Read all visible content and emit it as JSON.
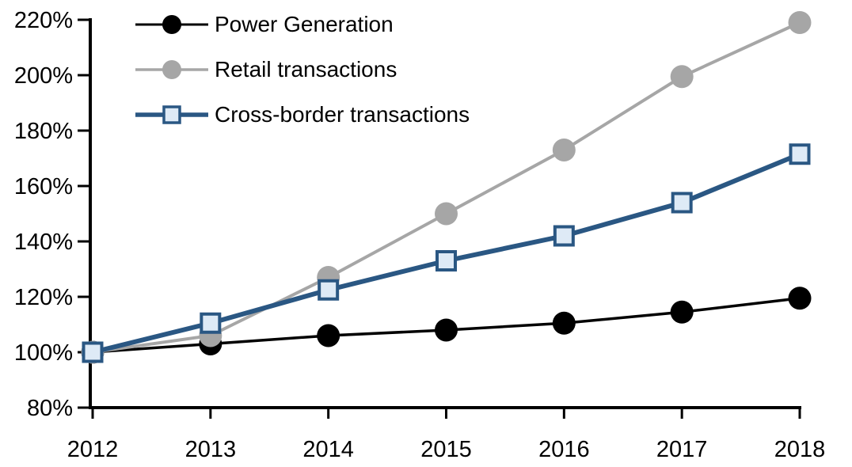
{
  "figure": {
    "background_color": "#FFFFFF",
    "title": ""
  },
  "chart_data": {
    "type": "line",
    "title": "",
    "xlabel": "",
    "ylabel": "",
    "values_unit": "%",
    "categories": [
      "2012",
      "2013",
      "2014",
      "2015",
      "2016",
      "2017",
      "2018"
    ],
    "series": [
      {
        "name": "Power Generation",
        "color": "#000000",
        "marker": "circle",
        "marker_fill": "#000000",
        "marker_stroke": "#000000",
        "line_width": 3.5,
        "values": [
          100,
          103,
          106,
          108,
          110.5,
          114.5,
          119.5
        ]
      },
      {
        "name": "Retail transactions",
        "color": "#A6A6A6",
        "marker": "circle",
        "marker_fill": "#A6A6A6",
        "marker_stroke": "#A6A6A6",
        "line_width": 4,
        "values": [
          100,
          106,
          127,
          150,
          173,
          199.5,
          219
        ]
      },
      {
        "name": "Cross-border transactions",
        "color": "#2A5783",
        "marker": "square",
        "marker_fill": "#DEEAF6",
        "marker_stroke": "#2A5783",
        "line_width": 6,
        "values": [
          100,
          110.5,
          122.5,
          133,
          142,
          154,
          171.5
        ]
      }
    ],
    "ylim": [
      80,
      220
    ],
    "y_tick_step": 20,
    "y_tick_labels": [
      "80%",
      "100%",
      "120%",
      "140%",
      "160%",
      "180%",
      "200%",
      "220%"
    ],
    "x_tick_labels": [
      "2012",
      "2013",
      "2014",
      "2015",
      "2016",
      "2017",
      "2018"
    ],
    "grid": false,
    "legend_position": "top-left-inside",
    "axis_color": "#000000"
  }
}
